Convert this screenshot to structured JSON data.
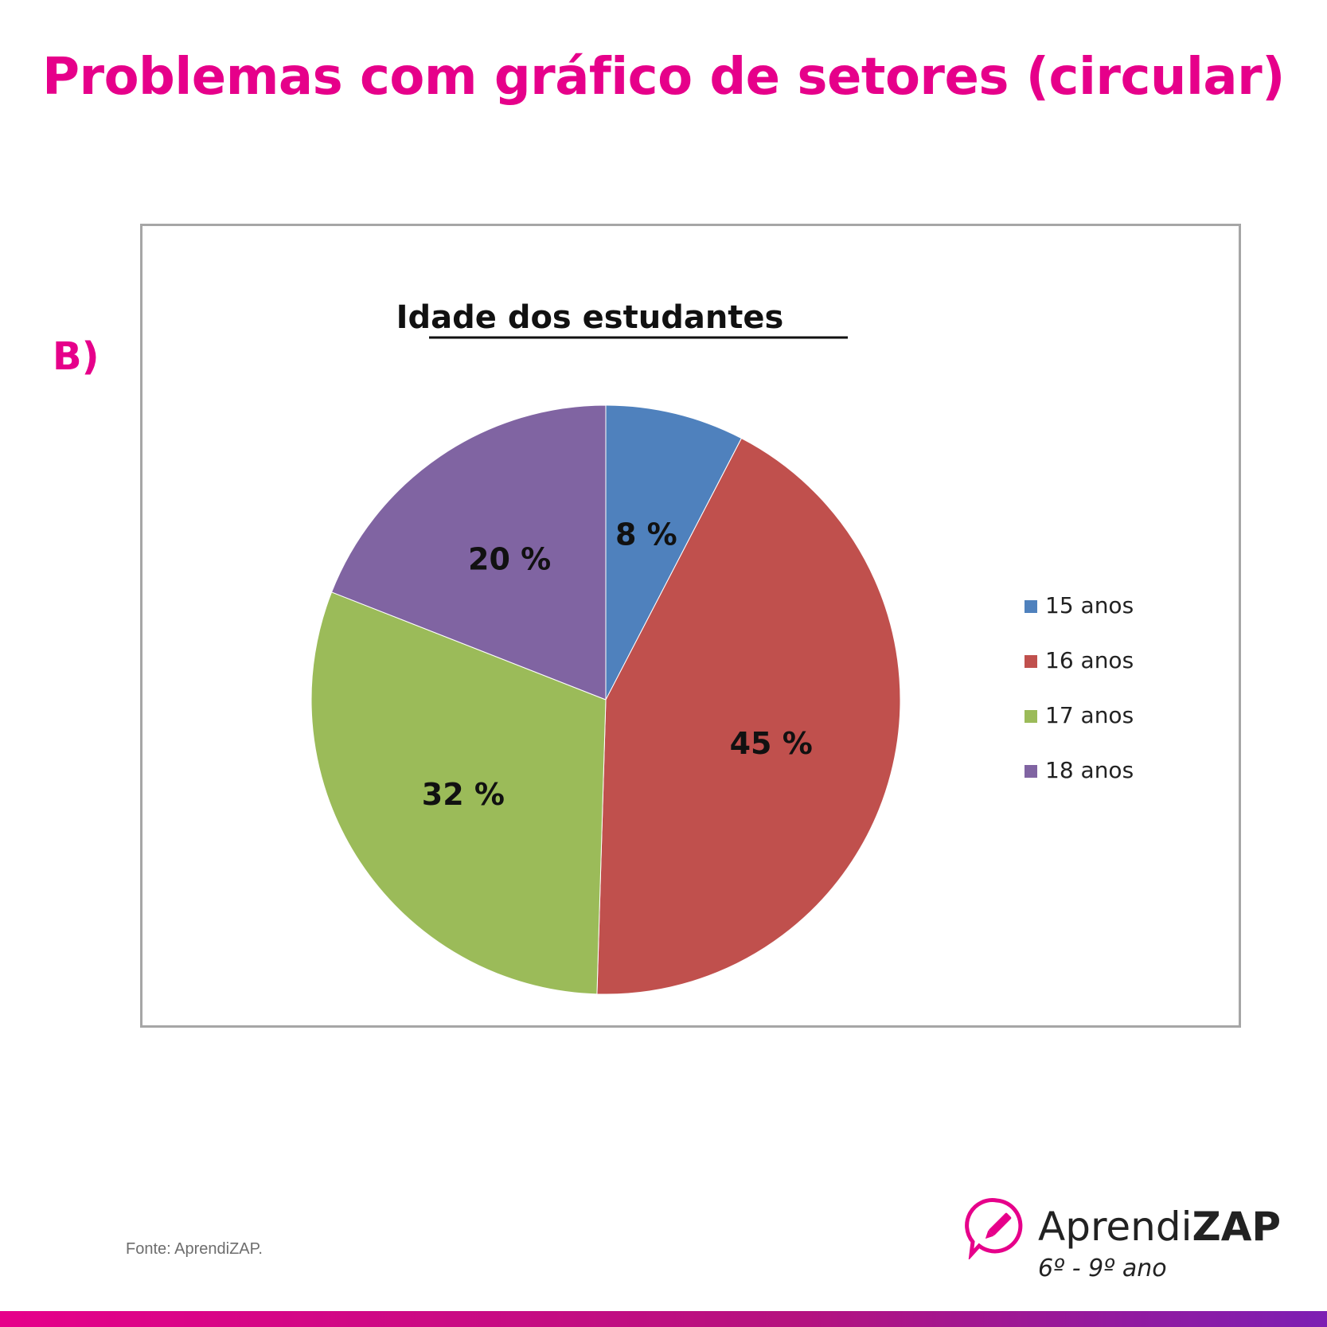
{
  "header": {
    "title": "Problemas com gráfico de setores (circular)",
    "option": "B)"
  },
  "chart_data": {
    "type": "pie",
    "title": "Idade dos estudantes",
    "categories": [
      "15 anos",
      "16 anos",
      "17 anos",
      "18 anos"
    ],
    "values": [
      8,
      45,
      32,
      20
    ],
    "data_labels": [
      "8 %",
      "45 %",
      "32 %",
      "20 %"
    ],
    "colors": [
      "#4f81bd",
      "#c0504d",
      "#9bbb59",
      "#8064a2"
    ],
    "legend_position": "right"
  },
  "footer": {
    "source": "Fonte: AprendiZAP.",
    "brand_prefix": "Aprendi",
    "brand_bold": "ZAP",
    "grades": "6º - 9º ano"
  },
  "colors": {
    "accent": "#e6008a",
    "bar_end": "#7d1fb3"
  }
}
